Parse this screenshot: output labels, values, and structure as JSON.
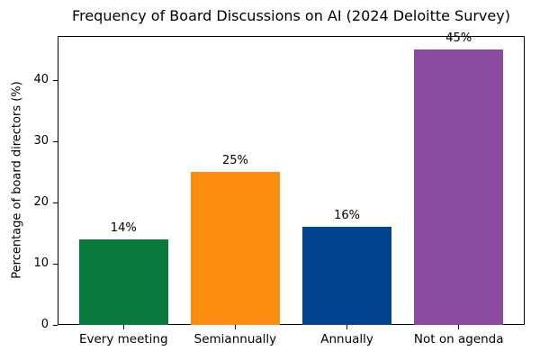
{
  "figure": {
    "background": "#ffffff",
    "text_color": "#000000",
    "axis_color": "#000000"
  },
  "chart_data": {
    "type": "bar",
    "title": "Frequency of Board Discussions on AI (2024 Deloitte Survey)",
    "xlabel": "",
    "ylabel": "Percentage of board directors (%)",
    "categories": [
      "Every meeting",
      "Semiannually",
      "Annually",
      "Not on agenda"
    ],
    "values": [
      14,
      25,
      16,
      45
    ],
    "value_labels": [
      "14%",
      "25%",
      "16%",
      "45%"
    ],
    "bar_colors": [
      "#0a7a3c",
      "#fa8c0e",
      "#01458e",
      "#8a4a9e"
    ],
    "ylim": [
      0,
      47.25
    ],
    "yticks": [
      0,
      10,
      20,
      30,
      40
    ],
    "grid": false,
    "legend": "none",
    "bar_width_fraction": 0.8
  }
}
